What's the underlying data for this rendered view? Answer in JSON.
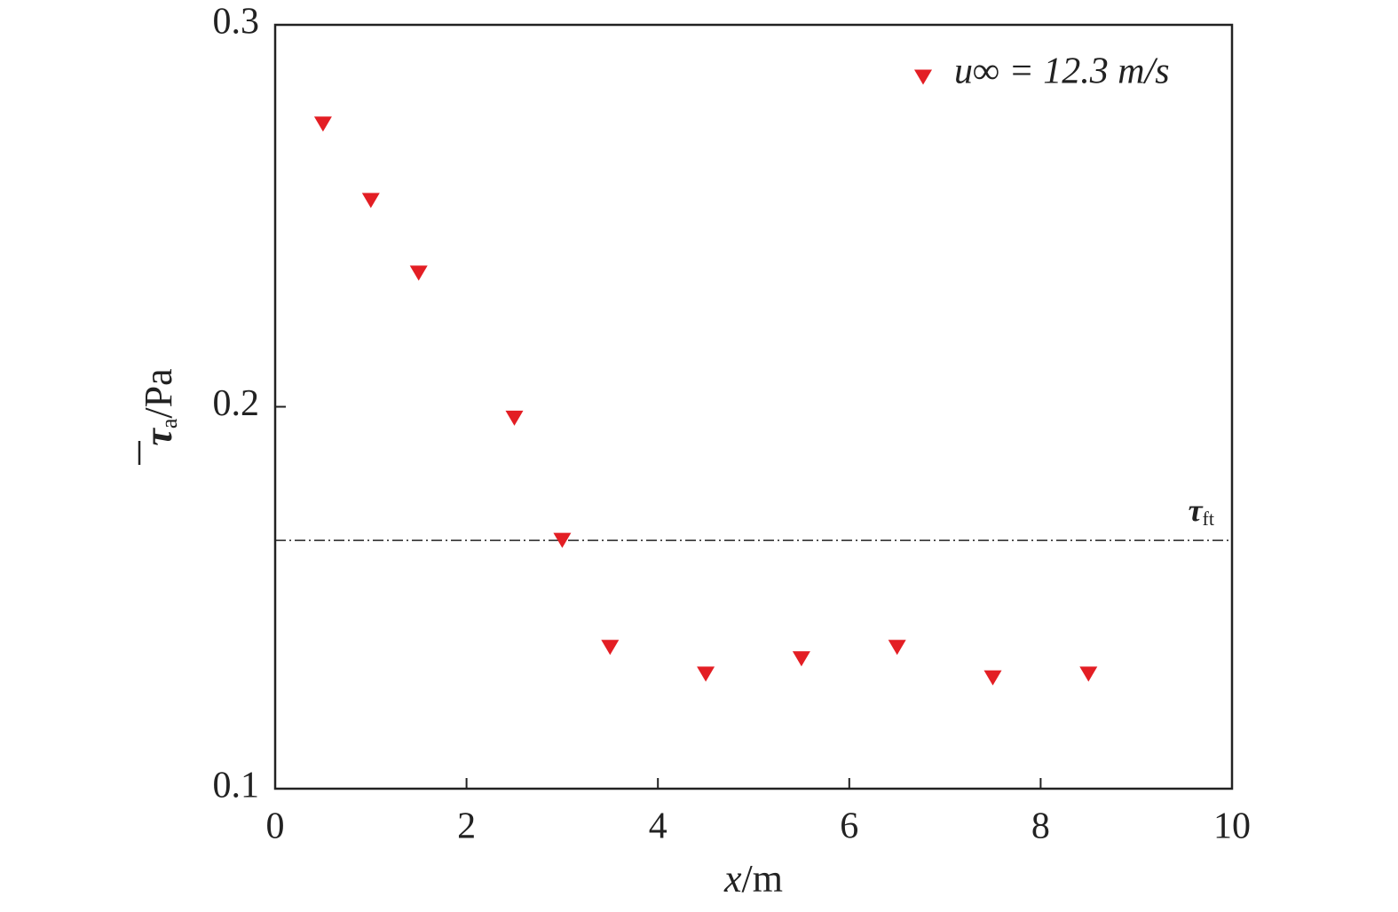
{
  "chart_data": {
    "type": "scatter",
    "xlabel": {
      "var": "x",
      "unit": "/m"
    },
    "ylabel": {
      "var": "τ",
      "sub": "a",
      "unit": "/Pa"
    },
    "x": [
      0.5,
      1,
      1.5,
      2.5,
      3,
      3.5,
      4.5,
      5.5,
      6.5,
      7.5,
      8.5
    ],
    "series": [
      {
        "name": "u∞ = 12.3 m/s",
        "color": "#e31e24",
        "values": [
          0.274,
          0.254,
          0.235,
          0.197,
          0.165,
          0.137,
          0.13,
          0.134,
          0.137,
          0.129,
          0.13
        ]
      }
    ],
    "xlim": [
      0,
      10
    ],
    "xticks": [
      0,
      2,
      4,
      6,
      8,
      10
    ],
    "ylim": [
      0.1,
      0.3
    ],
    "yticks": [
      0.1,
      0.2,
      0.3
    ],
    "threshold": {
      "value": 0.165,
      "symbol": "τ",
      "sub": "ft"
    },
    "legend": "upper right",
    "marker": "triangle-down"
  }
}
